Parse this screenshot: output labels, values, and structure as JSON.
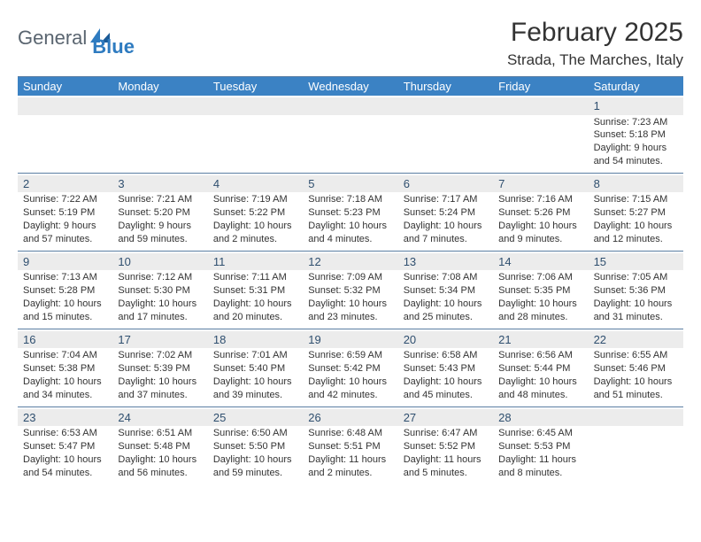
{
  "logo": {
    "text1": "General",
    "text2": "Blue"
  },
  "title": "February 2025",
  "location": "Strada, The Marches, Italy",
  "colors": {
    "header_bg": "#3b82c4",
    "header_text": "#ffffff",
    "divider": "#5b7ea3",
    "stripe": "#ececec",
    "daynum": "#2f4f6f",
    "body_text": "#333333",
    "logo_gray": "#5a6570",
    "logo_blue": "#2e7bc0"
  },
  "day_names": [
    "Sunday",
    "Monday",
    "Tuesday",
    "Wednesday",
    "Thursday",
    "Friday",
    "Saturday"
  ],
  "weeks": [
    [
      null,
      null,
      null,
      null,
      null,
      null,
      {
        "n": "1",
        "sr": "Sunrise: 7:23 AM",
        "ss": "Sunset: 5:18 PM",
        "d1": "Daylight: 9 hours",
        "d2": "and 54 minutes."
      }
    ],
    [
      {
        "n": "2",
        "sr": "Sunrise: 7:22 AM",
        "ss": "Sunset: 5:19 PM",
        "d1": "Daylight: 9 hours",
        "d2": "and 57 minutes."
      },
      {
        "n": "3",
        "sr": "Sunrise: 7:21 AM",
        "ss": "Sunset: 5:20 PM",
        "d1": "Daylight: 9 hours",
        "d2": "and 59 minutes."
      },
      {
        "n": "4",
        "sr": "Sunrise: 7:19 AM",
        "ss": "Sunset: 5:22 PM",
        "d1": "Daylight: 10 hours",
        "d2": "and 2 minutes."
      },
      {
        "n": "5",
        "sr": "Sunrise: 7:18 AM",
        "ss": "Sunset: 5:23 PM",
        "d1": "Daylight: 10 hours",
        "d2": "and 4 minutes."
      },
      {
        "n": "6",
        "sr": "Sunrise: 7:17 AM",
        "ss": "Sunset: 5:24 PM",
        "d1": "Daylight: 10 hours",
        "d2": "and 7 minutes."
      },
      {
        "n": "7",
        "sr": "Sunrise: 7:16 AM",
        "ss": "Sunset: 5:26 PM",
        "d1": "Daylight: 10 hours",
        "d2": "and 9 minutes."
      },
      {
        "n": "8",
        "sr": "Sunrise: 7:15 AM",
        "ss": "Sunset: 5:27 PM",
        "d1": "Daylight: 10 hours",
        "d2": "and 12 minutes."
      }
    ],
    [
      {
        "n": "9",
        "sr": "Sunrise: 7:13 AM",
        "ss": "Sunset: 5:28 PM",
        "d1": "Daylight: 10 hours",
        "d2": "and 15 minutes."
      },
      {
        "n": "10",
        "sr": "Sunrise: 7:12 AM",
        "ss": "Sunset: 5:30 PM",
        "d1": "Daylight: 10 hours",
        "d2": "and 17 minutes."
      },
      {
        "n": "11",
        "sr": "Sunrise: 7:11 AM",
        "ss": "Sunset: 5:31 PM",
        "d1": "Daylight: 10 hours",
        "d2": "and 20 minutes."
      },
      {
        "n": "12",
        "sr": "Sunrise: 7:09 AM",
        "ss": "Sunset: 5:32 PM",
        "d1": "Daylight: 10 hours",
        "d2": "and 23 minutes."
      },
      {
        "n": "13",
        "sr": "Sunrise: 7:08 AM",
        "ss": "Sunset: 5:34 PM",
        "d1": "Daylight: 10 hours",
        "d2": "and 25 minutes."
      },
      {
        "n": "14",
        "sr": "Sunrise: 7:06 AM",
        "ss": "Sunset: 5:35 PM",
        "d1": "Daylight: 10 hours",
        "d2": "and 28 minutes."
      },
      {
        "n": "15",
        "sr": "Sunrise: 7:05 AM",
        "ss": "Sunset: 5:36 PM",
        "d1": "Daylight: 10 hours",
        "d2": "and 31 minutes."
      }
    ],
    [
      {
        "n": "16",
        "sr": "Sunrise: 7:04 AM",
        "ss": "Sunset: 5:38 PM",
        "d1": "Daylight: 10 hours",
        "d2": "and 34 minutes."
      },
      {
        "n": "17",
        "sr": "Sunrise: 7:02 AM",
        "ss": "Sunset: 5:39 PM",
        "d1": "Daylight: 10 hours",
        "d2": "and 37 minutes."
      },
      {
        "n": "18",
        "sr": "Sunrise: 7:01 AM",
        "ss": "Sunset: 5:40 PM",
        "d1": "Daylight: 10 hours",
        "d2": "and 39 minutes."
      },
      {
        "n": "19",
        "sr": "Sunrise: 6:59 AM",
        "ss": "Sunset: 5:42 PM",
        "d1": "Daylight: 10 hours",
        "d2": "and 42 minutes."
      },
      {
        "n": "20",
        "sr": "Sunrise: 6:58 AM",
        "ss": "Sunset: 5:43 PM",
        "d1": "Daylight: 10 hours",
        "d2": "and 45 minutes."
      },
      {
        "n": "21",
        "sr": "Sunrise: 6:56 AM",
        "ss": "Sunset: 5:44 PM",
        "d1": "Daylight: 10 hours",
        "d2": "and 48 minutes."
      },
      {
        "n": "22",
        "sr": "Sunrise: 6:55 AM",
        "ss": "Sunset: 5:46 PM",
        "d1": "Daylight: 10 hours",
        "d2": "and 51 minutes."
      }
    ],
    [
      {
        "n": "23",
        "sr": "Sunrise: 6:53 AM",
        "ss": "Sunset: 5:47 PM",
        "d1": "Daylight: 10 hours",
        "d2": "and 54 minutes."
      },
      {
        "n": "24",
        "sr": "Sunrise: 6:51 AM",
        "ss": "Sunset: 5:48 PM",
        "d1": "Daylight: 10 hours",
        "d2": "and 56 minutes."
      },
      {
        "n": "25",
        "sr": "Sunrise: 6:50 AM",
        "ss": "Sunset: 5:50 PM",
        "d1": "Daylight: 10 hours",
        "d2": "and 59 minutes."
      },
      {
        "n": "26",
        "sr": "Sunrise: 6:48 AM",
        "ss": "Sunset: 5:51 PM",
        "d1": "Daylight: 11 hours",
        "d2": "and 2 minutes."
      },
      {
        "n": "27",
        "sr": "Sunrise: 6:47 AM",
        "ss": "Sunset: 5:52 PM",
        "d1": "Daylight: 11 hours",
        "d2": "and 5 minutes."
      },
      {
        "n": "28",
        "sr": "Sunrise: 6:45 AM",
        "ss": "Sunset: 5:53 PM",
        "d1": "Daylight: 11 hours",
        "d2": "and 8 minutes."
      },
      null
    ]
  ]
}
